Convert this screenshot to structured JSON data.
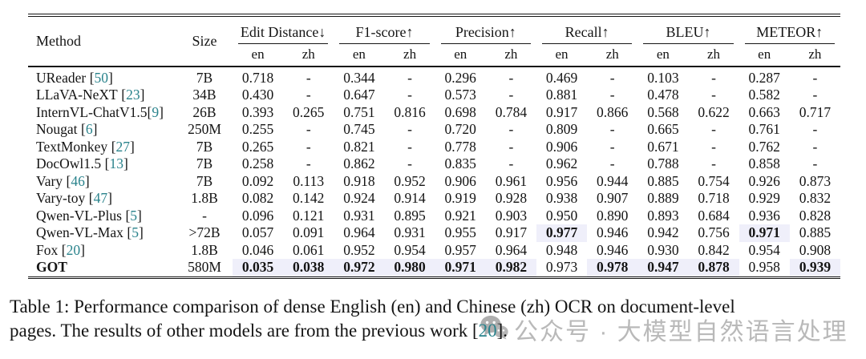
{
  "table": {
    "method_label": "Method",
    "size_label": "Size",
    "groups": [
      {
        "label": "Edit Distance↓"
      },
      {
        "label": "F1-score↑"
      },
      {
        "label": "Precision↑"
      },
      {
        "label": "Recall↑"
      },
      {
        "label": "BLEU↑"
      },
      {
        "label": "METEOR↑"
      }
    ],
    "sub_labels": [
      "en",
      "zh"
    ],
    "rows": [
      {
        "method": "UReader",
        "cite": "50",
        "tight": false,
        "bold_method": false,
        "size": "7B",
        "values": [
          "0.718",
          "-",
          "0.344",
          "-",
          "0.296",
          "-",
          "0.469",
          "-",
          "0.103",
          "-",
          "0.287",
          "-"
        ],
        "best": []
      },
      {
        "method": "LLaVA-NeXT",
        "cite": "23",
        "tight": false,
        "bold_method": false,
        "size": "34B",
        "values": [
          "0.430",
          "-",
          "0.647",
          "-",
          "0.573",
          "-",
          "0.881",
          "-",
          "0.478",
          "-",
          "0.582",
          "-"
        ],
        "best": []
      },
      {
        "method": "InternVL-ChatV1.5",
        "cite": "9",
        "tight": true,
        "bold_method": false,
        "size": "26B",
        "values": [
          "0.393",
          "0.265",
          "0.751",
          "0.816",
          "0.698",
          "0.784",
          "0.917",
          "0.866",
          "0.568",
          "0.622",
          "0.663",
          "0.717"
        ],
        "best": []
      },
      {
        "method": "Nougat",
        "cite": "6",
        "tight": false,
        "bold_method": false,
        "size": "250M",
        "values": [
          "0.255",
          "-",
          "0.745",
          "-",
          "0.720",
          "-",
          "0.809",
          "-",
          "0.665",
          "-",
          "0.761",
          "-"
        ],
        "best": []
      },
      {
        "method": "TextMonkey",
        "cite": "27",
        "tight": false,
        "bold_method": false,
        "size": "7B",
        "values": [
          "0.265",
          "-",
          "0.821",
          "-",
          "0.778",
          "-",
          "0.906",
          "-",
          "0.671",
          "-",
          "0.762",
          "-"
        ],
        "best": []
      },
      {
        "method": "DocOwl1.5",
        "cite": "13",
        "tight": false,
        "bold_method": false,
        "size": "7B",
        "values": [
          "0.258",
          "-",
          "0.862",
          "-",
          "0.835",
          "-",
          "0.962",
          "-",
          "0.788",
          "-",
          "0.858",
          "-"
        ],
        "best": []
      },
      {
        "method": "Vary",
        "cite": "46",
        "tight": false,
        "bold_method": false,
        "size": "7B",
        "values": [
          "0.092",
          "0.113",
          "0.918",
          "0.952",
          "0.906",
          "0.961",
          "0.956",
          "0.944",
          "0.885",
          "0.754",
          "0.926",
          "0.873"
        ],
        "best": []
      },
      {
        "method": "Vary-toy",
        "cite": "47",
        "tight": false,
        "bold_method": false,
        "size": "1.8B",
        "values": [
          "0.082",
          "0.142",
          "0.924",
          "0.914",
          "0.919",
          "0.928",
          "0.938",
          "0.907",
          "0.889",
          "0.718",
          "0.929",
          "0.832"
        ],
        "best": []
      },
      {
        "method": "Qwen-VL-Plus",
        "cite": "5",
        "tight": false,
        "bold_method": false,
        "size": "-",
        "values": [
          "0.096",
          "0.121",
          "0.931",
          "0.895",
          "0.921",
          "0.903",
          "0.950",
          "0.890",
          "0.893",
          "0.684",
          "0.936",
          "0.828"
        ],
        "best": []
      },
      {
        "method": "Qwen-VL-Max",
        "cite": "5",
        "tight": false,
        "bold_method": false,
        "size": ">72B",
        "values": [
          "0.057",
          "0.091",
          "0.964",
          "0.931",
          "0.955",
          "0.917",
          "0.977",
          "0.946",
          "0.942",
          "0.756",
          "0.971",
          "0.885"
        ],
        "best": [
          6,
          10
        ]
      },
      {
        "method": "Fox",
        "cite": "20",
        "tight": false,
        "bold_method": false,
        "size": "1.8B",
        "values": [
          "0.046",
          "0.061",
          "0.952",
          "0.954",
          "0.957",
          "0.964",
          "0.948",
          "0.946",
          "0.930",
          "0.842",
          "0.954",
          "0.908"
        ],
        "best": []
      },
      {
        "method": "GOT",
        "cite": null,
        "tight": false,
        "bold_method": true,
        "size": "580M",
        "values": [
          "0.035",
          "0.038",
          "0.972",
          "0.980",
          "0.971",
          "0.982",
          "0.973",
          "0.978",
          "0.947",
          "0.878",
          "0.958",
          "0.939"
        ],
        "best": [
          0,
          1,
          2,
          3,
          4,
          5,
          7,
          8,
          9,
          11
        ]
      }
    ]
  },
  "caption": {
    "line1": "Table 1: Performance comparison of dense English (en) and Chinese (zh) OCR on document-level",
    "line2_prefix": "pages. The results of other models are from the previous work [",
    "line2_cite": "20",
    "line2_suffix": "]."
  },
  "watermark": {
    "text": "公众号 · 大模型自然语言处理",
    "icon": "wechat-icon"
  },
  "colors": {
    "citation_teal": "#2a838c",
    "best_highlight": "#efeffa",
    "watermark_gray": "#8f8f8f",
    "rule_black": "#161616"
  }
}
